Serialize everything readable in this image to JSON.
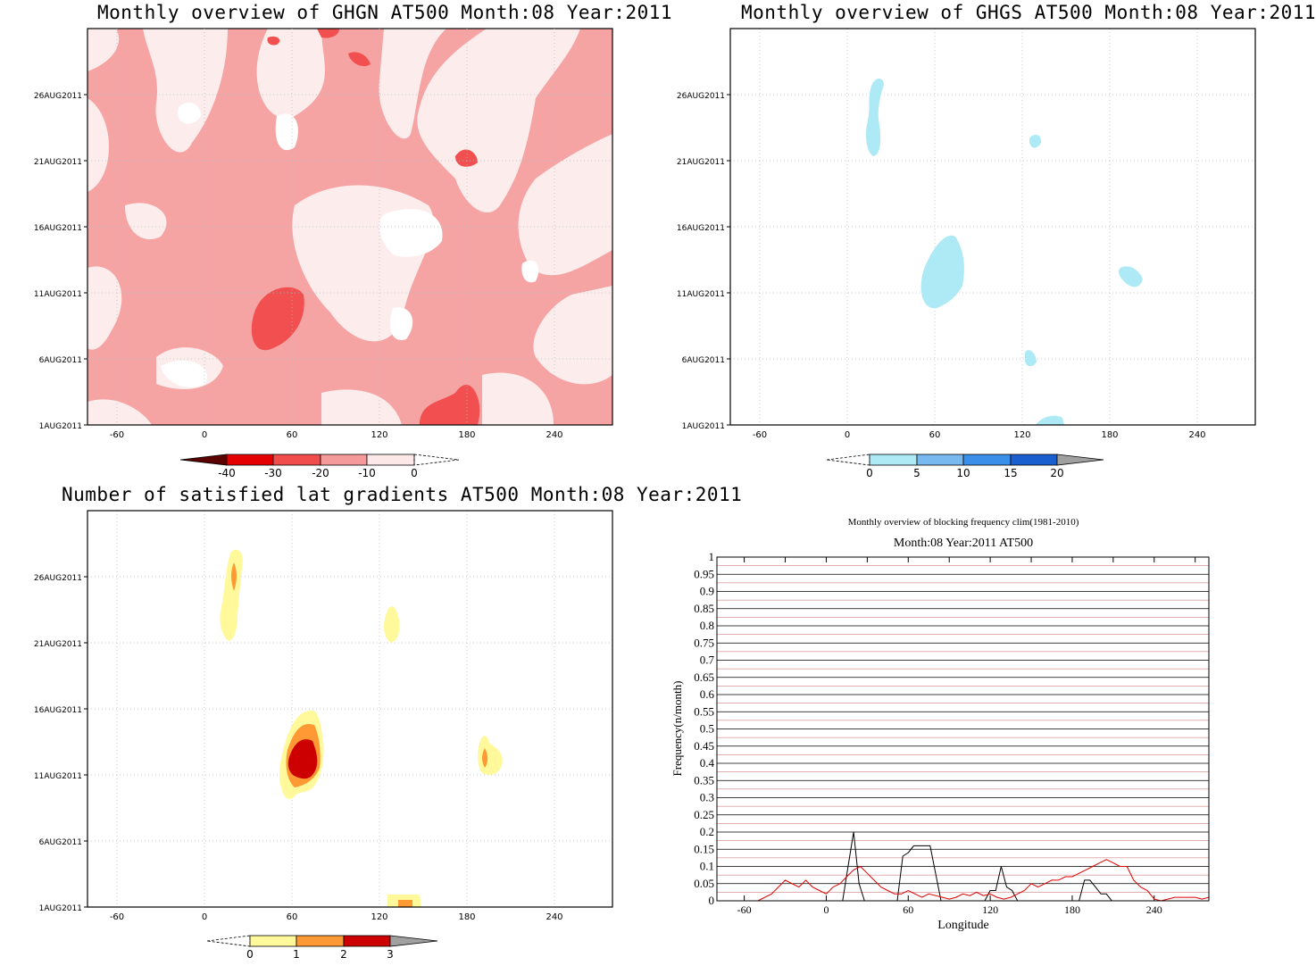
{
  "chart_data": [
    {
      "type": "heatmap",
      "title": "Monthly overview of GHGN AT500 Month:08 Year:2011",
      "xticks": [
        "-60",
        "0",
        "60",
        "120",
        "180",
        "240"
      ],
      "yticks": [
        "1AUG2011",
        "6AUG2011",
        "11AUG2011",
        "16AUG2011",
        "21AUG2011",
        "26AUG2011"
      ],
      "xlim": [
        -80,
        280
      ],
      "colorbar": {
        "ticks": [
          "-40",
          "-30",
          "-20",
          "-10",
          "0"
        ],
        "colors": [
          "#5a0000",
          "#e50000",
          "#f24d4d",
          "#f59a9a",
          "#fde8e8"
        ]
      }
    },
    {
      "type": "heatmap",
      "title": "Monthly overview of GHGS AT500 Month:08 Year:2011",
      "xticks": [
        "-60",
        "0",
        "60",
        "120",
        "180",
        "240"
      ],
      "yticks": [
        "1AUG2011",
        "6AUG2011",
        "11AUG2011",
        "16AUG2011",
        "21AUG2011",
        "26AUG2011"
      ],
      "xlim": [
        -80,
        280
      ],
      "colorbar": {
        "ticks": [
          "0",
          "5",
          "10",
          "15",
          "20"
        ],
        "colors": [
          "#aeeaf5",
          "#78b9f0",
          "#3a8fe8",
          "#1a5fd0",
          "#a0a0a0"
        ]
      }
    },
    {
      "type": "heatmap",
      "title": "Number of satisfied lat gradients AT500 Month:08 Year:2011",
      "xticks": [
        "-60",
        "0",
        "60",
        "120",
        "180",
        "240"
      ],
      "yticks": [
        "1AUG2011",
        "6AUG2011",
        "11AUG2011",
        "16AUG2011",
        "21AUG2011",
        "26AUG2011"
      ],
      "xlim": [
        -80,
        280
      ],
      "colorbar": {
        "ticks": [
          "0",
          "1",
          "2",
          "3"
        ],
        "colors": [
          "#fff99c",
          "#ff9933",
          "#cc0000",
          "#a0a0a0"
        ]
      }
    },
    {
      "type": "line",
      "title": "Month:08 Year:2011  AT500",
      "suptitle": "Monthly overview of blocking frequency clim(1981-2010)",
      "xlabel": "Longitude",
      "ylabel": "Frequency(n/month)",
      "xlim": [
        -80,
        280
      ],
      "ylim": [
        0,
        1
      ],
      "xticks": [
        "-60",
        "0",
        "60",
        "120",
        "180",
        "240"
      ],
      "yticks": [
        "0",
        "0.05",
        "0.1",
        "0.15",
        "0.2",
        "0.25",
        "0.3",
        "0.35",
        "0.4",
        "0.45",
        "0.5",
        "0.55",
        "0.6",
        "0.65",
        "0.7",
        "0.75",
        "0.8",
        "0.85",
        "0.9",
        "0.95",
        "1"
      ],
      "series": [
        {
          "color": "#000000",
          "x": [
            -80,
            12,
            16,
            20,
            24,
            28,
            52,
            56,
            60,
            64,
            76,
            80,
            84,
            112,
            116,
            120,
            124,
            128,
            132,
            136,
            140,
            185,
            189,
            193,
            197,
            201,
            205,
            209,
            280
          ],
          "y": [
            0,
            0,
            0.1,
            0.2,
            0.05,
            0,
            0,
            0.13,
            0.14,
            0.16,
            0.16,
            0.08,
            0,
            0,
            0,
            0.03,
            0.03,
            0.1,
            0.04,
            0.03,
            0,
            0,
            0.06,
            0.06,
            0.04,
            0.02,
            0.02,
            0,
            0
          ]
        },
        {
          "color": "#e00000",
          "x": [
            -80,
            -60,
            -50,
            -40,
            -30,
            -25,
            -20,
            -15,
            -10,
            -5,
            0,
            5,
            10,
            15,
            20,
            25,
            30,
            35,
            40,
            45,
            50,
            55,
            60,
            65,
            70,
            75,
            80,
            85,
            90,
            95,
            100,
            105,
            110,
            115,
            120,
            125,
            130,
            135,
            140,
            145,
            150,
            155,
            160,
            165,
            170,
            175,
            180,
            185,
            190,
            195,
            200,
            205,
            210,
            215,
            220,
            225,
            230,
            235,
            240,
            245,
            250,
            255,
            260,
            265,
            270,
            275,
            280
          ],
          "y": [
            0,
            0,
            0,
            0.02,
            0.06,
            0.05,
            0.04,
            0.06,
            0.04,
            0.03,
            0.02,
            0.04,
            0.05,
            0.07,
            0.09,
            0.1,
            0.08,
            0.06,
            0.04,
            0.03,
            0.02,
            0.02,
            0.03,
            0.02,
            0.01,
            0.02,
            0.015,
            0.01,
            0.005,
            0.01,
            0.02,
            0.015,
            0.025,
            0.015,
            0.02,
            0.01,
            0.005,
            0.01,
            0.02,
            0.03,
            0.05,
            0.04,
            0.05,
            0.06,
            0.06,
            0.07,
            0.07,
            0.08,
            0.09,
            0.1,
            0.11,
            0.12,
            0.11,
            0.1,
            0.1,
            0.06,
            0.04,
            0.03,
            0.005,
            0,
            0.005,
            0.01,
            0.01,
            0.01,
            0.01,
            0.005,
            0.01
          ]
        }
      ]
    }
  ]
}
